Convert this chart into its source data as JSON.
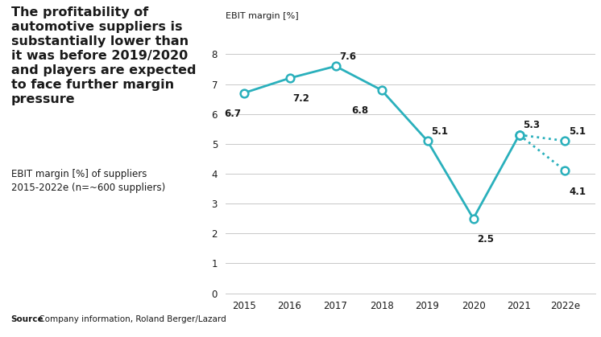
{
  "years_solid": [
    2015,
    2016,
    2017,
    2018,
    2019,
    2020,
    2021
  ],
  "values_solid": [
    6.7,
    7.2,
    7.6,
    6.8,
    5.1,
    2.5,
    5.3
  ],
  "years_dot_high": [
    2021,
    2022
  ],
  "values_dot_high": [
    5.3,
    5.1
  ],
  "years_dot_low": [
    2021,
    2022
  ],
  "values_dot_low": [
    5.3,
    4.1
  ],
  "line_color": "#2ab0bc",
  "marker_facecolor": "white",
  "marker_size": 7,
  "line_width": 2.0,
  "ylabel": "EBIT margin [%]",
  "ylim": [
    0,
    8.8
  ],
  "yticks": [
    0,
    1,
    2,
    3,
    4,
    5,
    6,
    7,
    8
  ],
  "xtick_labels": [
    "2015",
    "2016",
    "2017",
    "2018",
    "2019",
    "2020",
    "2021",
    "2022e"
  ],
  "title_text": "The profitability of\nautomotive suppliers is\nsubstantially lower than\nit was before 2019/2020\nand players are expected\nto face further margin\npressure",
  "subtitle_text": "EBIT margin [%] of suppliers\n2015-2022e (n=~600 suppliers)",
  "source_bold": "Source",
  "source_normal": " Company information, Roland Berger/Lazard",
  "bg_color": "#ffffff",
  "text_color": "#1a1a1a",
  "grid_color": "#c8c8c8",
  "title_fontsize": 11.5,
  "subtitle_fontsize": 8.5,
  "label_fontsize": 8.5,
  "source_fontsize": 7.5
}
